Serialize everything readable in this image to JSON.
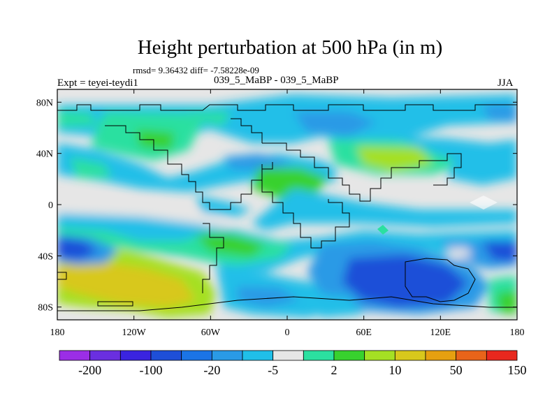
{
  "title": "Height perturbation at 500 hPa (in m)",
  "stats_text": "rmsd= 9.36432 diff= -7.58228e-09",
  "left_label": "Expt = teyei-teydi1",
  "center_label": "039_5_MaBP - 039_5_MaBP",
  "right_label": "JJA",
  "chart_data": {
    "type": "heatmap",
    "title": "Height perturbation at 500 hPa (in m)",
    "field": "500 hPa geopotential height perturbation (m)",
    "season": "JJA",
    "x_range": [
      -180,
      180
    ],
    "y_range": [
      -90,
      90
    ],
    "x_ticks": [
      -180,
      -120,
      -60,
      0,
      60,
      120,
      180
    ],
    "x_tick_labels": [
      "180",
      "120W",
      "60W",
      "0",
      "60E",
      "120E",
      "180"
    ],
    "y_ticks": [
      80,
      40,
      0,
      -40,
      -80
    ],
    "y_tick_labels": [
      "80N",
      "40N",
      "0",
      "40S",
      "80S"
    ],
    "colorbar": {
      "colors": [
        "#9b2ee6",
        "#6a2fe0",
        "#3a24e0",
        "#1e4fd8",
        "#1b74e6",
        "#2a9ae6",
        "#20bfe8",
        "#e6e6e6",
        "#2be0a0",
        "#38d12e",
        "#a5e024",
        "#d8c81c",
        "#e6a010",
        "#e8641a",
        "#e8281e"
      ],
      "tick_labels": [
        "-200",
        "-100",
        "-20",
        "-5",
        "2",
        "10",
        "50",
        "150"
      ]
    },
    "features": [
      {
        "region": "Southern Pacific high-latitude positive anomaly",
        "lon_center": -150,
        "lat_center": -55,
        "value_class": "50"
      },
      {
        "region": "South Pacific low near 35S",
        "lon_center": -170,
        "lat_center": -35,
        "value_class": "-20"
      },
      {
        "region": "Southern Indian Ocean / Australia negative anomaly",
        "lon_center": 80,
        "lat_center": -55,
        "value_class": "-20"
      },
      {
        "region": "Southeast Pacific low near 40S",
        "lon_center": 175,
        "lat_center": -40,
        "value_class": "-20"
      },
      {
        "region": "North Pacific / Asia positive band near 40N",
        "lon_center": 65,
        "lat_center": 40,
        "value_class": "10"
      },
      {
        "region": "North Atlantic positive anomaly near 60N",
        "lon_center": -120,
        "lat_center": 60,
        "value_class": "2"
      },
      {
        "region": "Arctic Asia negative anomaly near 60N",
        "lon_center": 60,
        "lat_center": 65,
        "value_class": "-5"
      }
    ]
  }
}
